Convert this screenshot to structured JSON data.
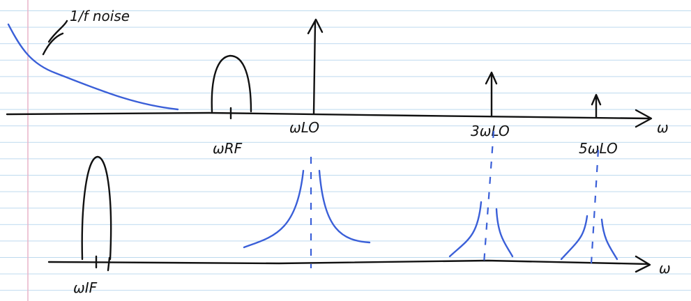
{
  "labels": {
    "noise": "1/f noise",
    "rf": "ωRF",
    "lo": "ωLO",
    "lo3": "3ωLO",
    "lo5": "5ωLO",
    "axis_top": "ω",
    "axis_bottom": "ω",
    "if": "ωIF"
  }
}
